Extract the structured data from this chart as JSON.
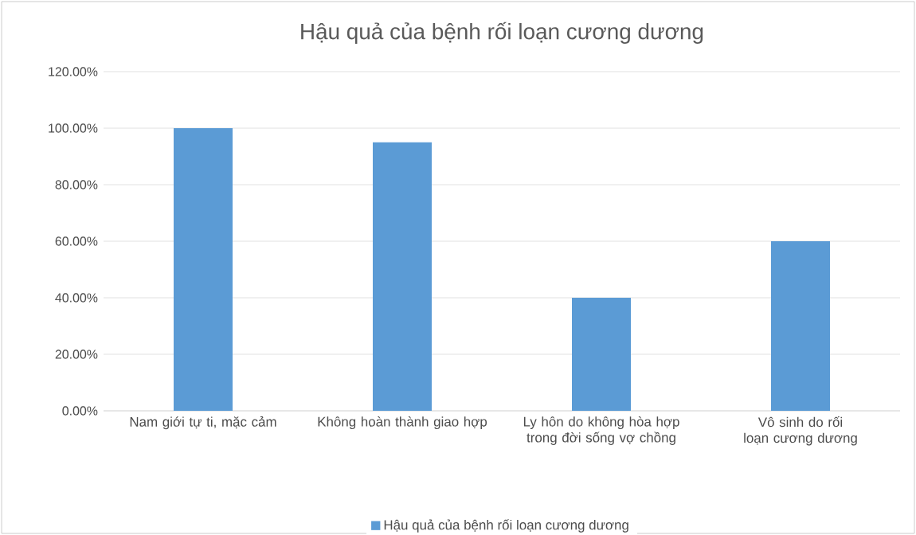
{
  "chart_data": {
    "type": "bar",
    "title": "Hậu quả của bệnh rối loạn cương dương",
    "categories": [
      "Nam giới tự ti, mặc cảm",
      "Không hoàn thành giao hợp",
      "Ly hôn do không hòa hợp trong đời sống vợ chồng",
      "Vô sinh do rối loạn cương dương"
    ],
    "series": [
      {
        "name": "Hậu quả của bệnh rối loạn cương dương",
        "color": "#5b9bd5",
        "values": [
          100,
          95,
          40,
          60
        ]
      }
    ],
    "ylim": [
      0,
      120
    ],
    "yticks": [
      {
        "value": 0,
        "label": "0.00%"
      },
      {
        "value": 20,
        "label": "20.00%"
      },
      {
        "value": 40,
        "label": "40.00%"
      },
      {
        "value": 60,
        "label": "60.00%"
      },
      {
        "value": 80,
        "label": "80.00%"
      },
      {
        "value": 100,
        "label": "100.00%"
      },
      {
        "value": 120,
        "label": "120.00%"
      }
    ],
    "grid": "y",
    "legend": "bottom"
  }
}
